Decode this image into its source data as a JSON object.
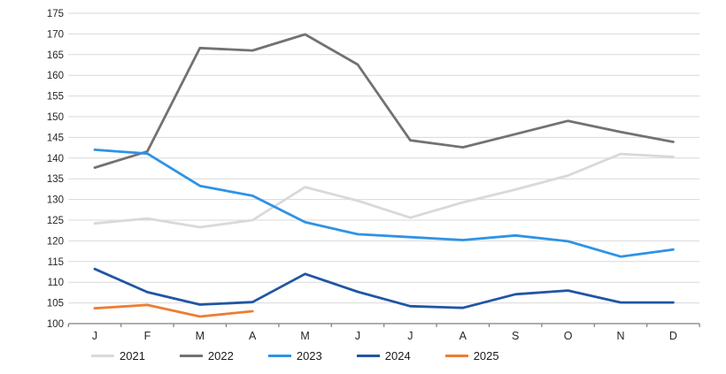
{
  "chart_data": {
    "type": "line",
    "title": "",
    "xlabel": "",
    "ylabel": "",
    "x_categories": [
      "J",
      "F",
      "M",
      "A",
      "M",
      "J",
      "J",
      "A",
      "S",
      "O",
      "N",
      "D"
    ],
    "ylim": [
      100,
      175
    ],
    "ytick_step": 5,
    "grid": true,
    "legend_position": "bottom",
    "colors": {
      "gridline": "#d9d9d9",
      "axis_line": "#7f7f7f",
      "tick_text": "#262626"
    },
    "series": [
      {
        "name": "2021",
        "color": "#d9d9d9",
        "values": [
          124.2,
          125.4,
          123.3,
          125.0,
          133.0,
          129.7,
          125.6,
          129.3,
          132.4,
          135.8,
          141.0,
          140.3
        ]
      },
      {
        "name": "2022",
        "color": "#767171",
        "values": [
          137.7,
          141.6,
          166.6,
          166.0,
          169.9,
          162.6,
          144.3,
          142.6,
          145.8,
          149.0,
          146.3,
          143.9
        ]
      },
      {
        "name": "2023",
        "color": "#2e93e6",
        "values": [
          142.0,
          141.1,
          133.3,
          130.9,
          124.5,
          121.6,
          120.9,
          120.2,
          121.3,
          119.9,
          116.2,
          117.9
        ]
      },
      {
        "name": "2024",
        "color": "#2155a4",
        "values": [
          113.2,
          107.6,
          104.6,
          105.2,
          112.0,
          107.7,
          104.2,
          103.8,
          107.1,
          108.0,
          105.1,
          105.1
        ]
      },
      {
        "name": "2025",
        "color": "#ed7d31",
        "values": [
          103.7,
          104.5,
          101.7,
          103.0
        ]
      }
    ]
  }
}
